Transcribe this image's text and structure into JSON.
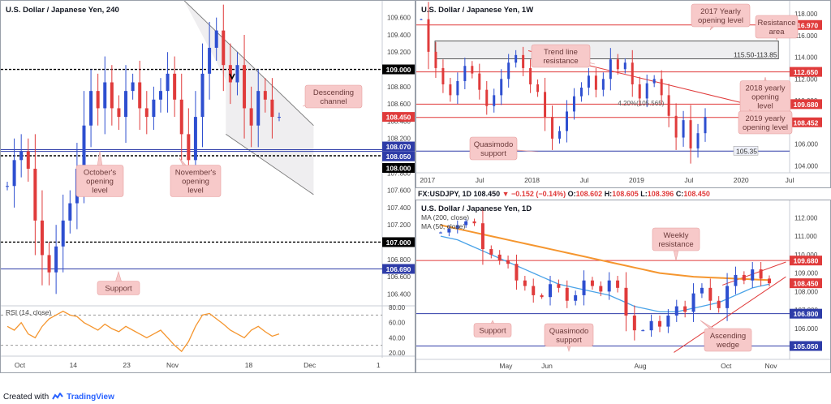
{
  "colors": {
    "up": "#2e4fd0",
    "down": "#e03b3b",
    "resistance": "#e03b3b",
    "support": "#2e3ca8",
    "dotted": "#000000",
    "ma200": "#f5962f",
    "ma50": "#4aa3e8",
    "rsi": "#f5962f",
    "callout_bg": "#f7c9c9",
    "callout_text": "#6b3a3a",
    "label_dark": "#000000"
  },
  "footer": {
    "prefix": "Created with",
    "brand": "TradingView"
  },
  "chart_data": [
    {
      "id": "h4",
      "type": "candlestick",
      "title": "U.S. Dollar / Japanese Yen, 240",
      "ylim": [
        106.3,
        109.7
      ],
      "y_ticks": [
        "109.600",
        "109.400",
        "109.200",
        "109.000",
        "108.800",
        "108.600",
        "108.400",
        "108.200",
        "108.000",
        "107.800",
        "107.600",
        "107.400",
        "107.200",
        "107.000",
        "106.800",
        "106.600",
        "106.400"
      ],
      "x_ticks": [
        "Oct",
        "14",
        "23",
        "Nov",
        "18",
        "Dec",
        "1"
      ],
      "x_tick_pos": [
        0.05,
        0.19,
        0.33,
        0.45,
        0.65,
        0.81,
        0.99
      ],
      "close": [
        107.65,
        107.95,
        108.05,
        107.85,
        107.25,
        106.85,
        106.65,
        106.95,
        107.25,
        107.45,
        107.85,
        108.35,
        108.75,
        108.55,
        108.85,
        108.55,
        108.45,
        108.75,
        108.85,
        108.55,
        108.45,
        108.65,
        108.75,
        108.95,
        108.65,
        108.25,
        107.95,
        108.45,
        108.95,
        109.25,
        109.45,
        109.05,
        108.85,
        109.05,
        108.55,
        108.35,
        108.75,
        108.65,
        108.45,
        108.45
      ],
      "levels": [
        {
          "value": 109.0,
          "label": "109.000",
          "kind": "dotted"
        },
        {
          "value": 108.45,
          "label": "108.450",
          "kind": "price"
        },
        {
          "value": 108.07,
          "label": "108.070",
          "kind": "support"
        },
        {
          "value": 108.05,
          "label": "108.050",
          "kind": "support"
        },
        {
          "value": 108.0,
          "label": "108.000",
          "kind": "dotted"
        },
        {
          "value": 107.0,
          "label": "107.000",
          "kind": "dotted"
        },
        {
          "value": 106.69,
          "label": "106.690",
          "kind": "support"
        }
      ],
      "channel": {
        "upper": [
          [
            0.48,
            109.8
          ],
          [
            0.82,
            108.35
          ]
        ],
        "lower": [
          [
            0.59,
            108.25
          ],
          [
            0.82,
            107.55
          ]
        ]
      },
      "annotations": [
        {
          "text": "Descending\nchannel"
        },
        {
          "text": "October's\nopening\nlevel"
        },
        {
          "text": "November's\nopening\nlevel"
        },
        {
          "text": "Support"
        }
      ],
      "rsi": {
        "label": "RSI (14, close)",
        "ylim": [
          20,
          80
        ],
        "y_ticks": [
          "80.00",
          "60.00",
          "40.00",
          "20.00"
        ],
        "values": [
          55,
          50,
          60,
          45,
          40,
          55,
          65,
          70,
          75,
          70,
          68,
          60,
          55,
          50,
          58,
          52,
          48,
          55,
          50,
          45,
          40,
          45,
          50,
          40,
          30,
          22,
          35,
          55,
          70,
          72,
          65,
          58,
          50,
          45,
          40,
          50,
          55,
          48,
          42,
          45
        ]
      }
    },
    {
      "id": "weekly",
      "type": "candlestick",
      "title": "U.S. Dollar / Japanese Yen, 1W",
      "ylim": [
        103.8,
        118.6
      ],
      "y_ticks": [
        "118.000",
        "116.000",
        "114.000",
        "112.000",
        "110.000",
        "108.000",
        "106.000",
        "104.000"
      ],
      "x_ticks": [
        "2017",
        "Jul",
        "2018",
        "Jul",
        "2019",
        "Jul",
        "2020",
        "Jul"
      ],
      "x_tick_pos": [
        0.03,
        0.17,
        0.31,
        0.45,
        0.59,
        0.73,
        0.87,
        1.0
      ],
      "close": [
        117.5,
        114.5,
        113.0,
        111.5,
        110.5,
        111.8,
        113.2,
        112.5,
        111.0,
        109.5,
        110.5,
        112.0,
        113.5,
        114.2,
        113.0,
        111.5,
        110.8,
        108.5,
        106.5,
        107.2,
        109.0,
        110.4,
        111.2,
        112.3,
        111.0,
        112.0,
        113.8,
        112.9,
        113.5,
        111.5,
        110.2,
        111.6,
        112.0,
        110.5,
        108.6,
        106.6,
        108.2,
        105.6,
        107.0,
        108.5
      ],
      "levels": [
        {
          "value": 116.97,
          "label": "116.970",
          "kind": "resistance"
        },
        {
          "value": 112.65,
          "label": "112.650",
          "kind": "resistance"
        },
        {
          "value": 109.68,
          "label": "109.680",
          "kind": "resistance"
        },
        {
          "value": 108.452,
          "label": "108.452",
          "kind": "price"
        },
        {
          "value": 105.35,
          "label": "105.35",
          "kind": "support"
        }
      ],
      "trendline": [
        [
          0.3,
          114.6
        ],
        [
          0.92,
          109.4
        ]
      ],
      "box": {
        "label": "115.50-113.85",
        "y": [
          113.85,
          115.5
        ]
      },
      "annotations": [
        {
          "text": "2017 Yearly\nopening level"
        },
        {
          "text": "Resistance\narea"
        },
        {
          "text": "Trend line\nresistance"
        },
        {
          "text": "2018 yearly\nopening\nlevel"
        },
        {
          "text": "2019 yearly\nopening level"
        },
        {
          "text": "Quasimodo\nsupport"
        }
      ],
      "inline_text": [
        {
          "text": "4.20%(105.565)"
        }
      ]
    },
    {
      "id": "daily",
      "type": "candlestick",
      "title": "U.S. Dollar / Japanese Yen, 1D",
      "info": {
        "symbol": "FX:USDJPY, 1D",
        "value": "108.450",
        "change": "−0.152 (−0.14%)",
        "O": "108.602",
        "H": "108.605",
        "L": "108.396",
        "C": "108.450"
      },
      "ylim": [
        104.5,
        112.5
      ],
      "y_ticks": [
        "112.000",
        "111.000",
        "110.000",
        "109.000",
        "108.000",
        "107.000",
        "106.000",
        "105.000"
      ],
      "x_ticks": [
        "May",
        "Jun",
        "Aug",
        "Oct",
        "Nov"
      ],
      "x_tick_pos": [
        0.24,
        0.35,
        0.6,
        0.83,
        0.95
      ],
      "close": [
        111.2,
        111.4,
        111.6,
        111.8,
        111.7,
        110.3,
        110.0,
        109.7,
        109.5,
        108.6,
        108.3,
        107.8,
        107.7,
        108.4,
        108.2,
        107.5,
        107.8,
        108.6,
        108.3,
        108.0,
        108.6,
        108.2,
        106.7,
        105.9,
        105.9,
        106.4,
        106.1,
        106.7,
        107.2,
        106.9,
        107.9,
        108.2,
        107.5,
        107.1,
        108.3,
        108.9,
        108.6,
        109.2,
        108.7,
        108.45
      ],
      "ma200": [
        111.6,
        111.5,
        111.4,
        111.3,
        111.2,
        111.1,
        111.0,
        110.9,
        110.8,
        110.7,
        110.6,
        110.5,
        110.4,
        110.3,
        110.2,
        110.1,
        110.0,
        109.9,
        109.8,
        109.7,
        109.6,
        109.5,
        109.4,
        109.3,
        109.2,
        109.1,
        109.0,
        108.95,
        108.9,
        108.85,
        108.8,
        108.78,
        108.76,
        108.74,
        108.72,
        108.7,
        108.68,
        108.66,
        108.64,
        108.62
      ],
      "ma50": [
        111.0,
        110.9,
        110.8,
        110.6,
        110.4,
        110.2,
        110.0,
        109.8,
        109.6,
        109.4,
        109.2,
        109.0,
        108.8,
        108.6,
        108.4,
        108.3,
        108.2,
        108.1,
        108.0,
        107.9,
        107.8,
        107.6,
        107.4,
        107.2,
        107.1,
        107.0,
        106.9,
        106.9,
        106.9,
        107.0,
        107.1,
        107.2,
        107.3,
        107.4,
        107.6,
        107.8,
        108.0,
        108.2,
        108.3,
        108.4
      ],
      "ma_labels": [
        "MA (200, close)",
        "MA (50, close)"
      ],
      "levels": [
        {
          "value": 109.68,
          "label": "109.680",
          "kind": "resistance"
        },
        {
          "value": 108.45,
          "label": "108.450",
          "kind": "price"
        },
        {
          "value": 106.8,
          "label": "106.800",
          "kind": "support"
        },
        {
          "value": 105.05,
          "label": "105.050",
          "kind": "support"
        }
      ],
      "wedge": {
        "lower": [
          [
            0.69,
            104.7
          ],
          [
            0.99,
            108.8
          ]
        ],
        "upper": [
          [
            0.82,
            108.35
          ],
          [
            0.99,
            109.6
          ]
        ]
      },
      "annotations": [
        {
          "text": "Weekly\nresistance"
        },
        {
          "text": "Support"
        },
        {
          "text": "Quasimodo\nsupport"
        },
        {
          "text": "Ascending\nwedge"
        }
      ]
    }
  ]
}
